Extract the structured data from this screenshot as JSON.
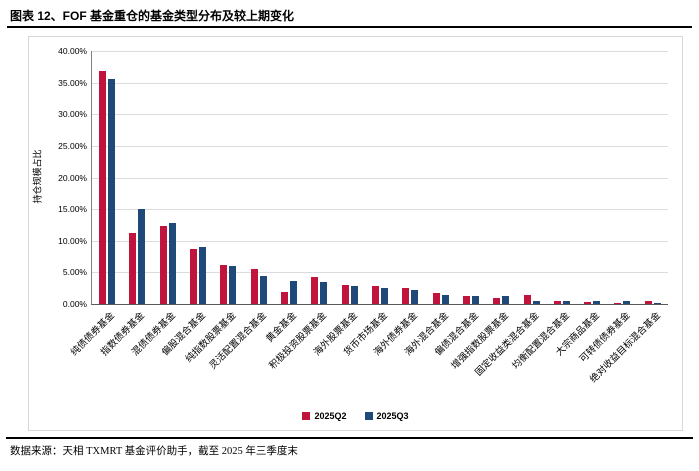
{
  "header": {
    "title": "图表 12、FOF 基金重仓的基金类型分布及较上期变化"
  },
  "footer": {
    "source": "数据来源：天相 TXMRT 基金评价助手，截至 2025 年三季度末"
  },
  "chart_data": {
    "type": "bar",
    "title": "FOF 基金重仓的基金类型分布及较上期变化",
    "xlabel": "",
    "ylabel": "持仓规模占比",
    "ylim": [
      0,
      40
    ],
    "ytick_step": 5,
    "ytick_format": "0.00%",
    "grid": true,
    "legend_position": "bottom",
    "categories": [
      "纯债债券基金",
      "指数债券基金",
      "混债债券基金",
      "偏股混合基金",
      "纯指数股票基金",
      "灵活配置混合基金",
      "黄金基金",
      "积极投资股票基金",
      "海外股票基金",
      "货币市场基金",
      "海外债券基金",
      "海外混合基金",
      "偏债混合基金",
      "增强指数股票基金",
      "固定收益类混合基金",
      "均衡配置混合基金",
      "大宗商品基金",
      "可转债债券基金",
      "绝对收益目标混合基金"
    ],
    "series": [
      {
        "name": "2025Q2",
        "color": "#c0143c",
        "values": [
          36.9,
          11.2,
          12.4,
          8.7,
          6.2,
          5.5,
          1.9,
          4.2,
          3.0,
          2.9,
          2.5,
          1.7,
          1.3,
          0.9,
          1.4,
          0.5,
          0.3,
          0.1,
          0.4
        ]
      },
      {
        "name": "2025Q3",
        "color": "#1f4978",
        "values": [
          35.6,
          15.0,
          12.8,
          9.0,
          6.0,
          4.5,
          3.7,
          3.5,
          2.9,
          2.6,
          2.2,
          1.4,
          1.3,
          1.2,
          0.4,
          0.5,
          0.4,
          0.4,
          0.2
        ]
      }
    ]
  }
}
